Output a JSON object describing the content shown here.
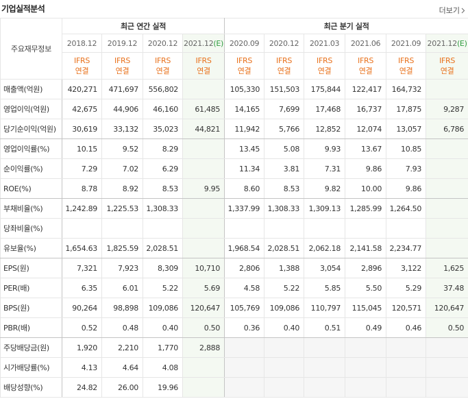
{
  "header": {
    "title": "기업실적분석",
    "more": "더보기"
  },
  "table": {
    "corner": "주요재무정보",
    "groups": [
      "최근 연간 실적",
      "최근 분기 실적"
    ],
    "periods": [
      {
        "date": "2018.12"
      },
      {
        "date": "2019.12"
      },
      {
        "date": "2020.12"
      },
      {
        "date": "2021.12",
        "mark": "(E)"
      },
      {
        "date": "2020.09"
      },
      {
        "date": "2020.12"
      },
      {
        "date": "2021.03"
      },
      {
        "date": "2021.06"
      },
      {
        "date": "2021.09"
      },
      {
        "date": "2021.12",
        "mark": "(E)"
      }
    ],
    "basis": [
      {
        "standard": "IFRS",
        "scope": "연결"
      },
      {
        "standard": "IFRS",
        "scope": "연결"
      },
      {
        "standard": "IFRS",
        "scope": "연결"
      },
      {
        "standard": "IFRS",
        "scope": "연결"
      },
      {
        "standard": "IFRS",
        "scope": "연결"
      },
      {
        "standard": "IFRS",
        "scope": "연결"
      },
      {
        "standard": "IFRS",
        "scope": "연결"
      },
      {
        "standard": "IFRS",
        "scope": "연결"
      },
      {
        "standard": "IFRS",
        "scope": "연결"
      },
      {
        "standard": "IFRS",
        "scope": "연결"
      }
    ],
    "rows": [
      {
        "label": "매출액(억원)",
        "values": [
          "420,271",
          "471,697",
          "556,802",
          null,
          "105,330",
          "151,503",
          "175,844",
          "122,417",
          "164,732",
          null
        ]
      },
      {
        "label": "영업이익(억원)",
        "values": [
          "42,675",
          "44,906",
          "46,160",
          "61,485",
          "14,165",
          "7,699",
          "17,468",
          "16,737",
          "17,875",
          "9,287"
        ]
      },
      {
        "label": "당기순이익(억원)",
        "values": [
          "30,619",
          "33,132",
          "35,023",
          "44,821",
          "11,942",
          "5,766",
          "12,852",
          "12,074",
          "13,057",
          "6,786"
        ]
      },
      {
        "label": "영업이익률(%)",
        "values": [
          "10.15",
          "9.52",
          "8.29",
          null,
          "13.45",
          "5.08",
          "9.93",
          "13.67",
          "10.85",
          null
        ]
      },
      {
        "label": "순이익률(%)",
        "values": [
          "7.29",
          "7.02",
          "6.29",
          null,
          "11.34",
          "3.81",
          "7.31",
          "9.86",
          "7.93",
          null
        ]
      },
      {
        "label": "ROE(%)",
        "values": [
          "8.78",
          "8.92",
          "8.53",
          "9.95",
          "8.60",
          "8.53",
          "9.82",
          "10.00",
          "9.86",
          null
        ]
      },
      {
        "label": "부채비율(%)",
        "values": [
          "1,242.89",
          "1,225.53",
          "1,308.33",
          null,
          "1,337.99",
          "1,308.33",
          "1,309.13",
          "1,285.99",
          "1,264.50",
          null
        ]
      },
      {
        "label": "당좌비율(%)",
        "values": [
          null,
          null,
          null,
          null,
          null,
          null,
          null,
          null,
          null,
          null
        ]
      },
      {
        "label": "유보율(%)",
        "values": [
          "1,654.63",
          "1,825.59",
          "2,028.51",
          null,
          "1,968.54",
          "2,028.51",
          "2,062.18",
          "2,141.58",
          "2,234.77",
          null
        ]
      },
      {
        "label": "EPS(원)",
        "values": [
          "7,321",
          "7,923",
          "8,309",
          "10,710",
          "2,806",
          "1,388",
          "3,054",
          "2,896",
          "3,122",
          "1,625"
        ]
      },
      {
        "label": "PER(배)",
        "values": [
          "6.35",
          "6.01",
          "5.22",
          "5.69",
          "4.58",
          "5.22",
          "5.85",
          "5.50",
          "5.29",
          "37.48"
        ]
      },
      {
        "label": "BPS(원)",
        "values": [
          "90,264",
          "98,898",
          "109,086",
          "120,647",
          "105,769",
          "109,086",
          "110,797",
          "115,045",
          "120,571",
          "120,647"
        ]
      },
      {
        "label": "PBR(배)",
        "values": [
          "0.52",
          "0.48",
          "0.40",
          "0.50",
          "0.36",
          "0.40",
          "0.51",
          "0.49",
          "0.46",
          "0.50"
        ]
      },
      {
        "label": "주당배당금(원)",
        "values": [
          "1,920",
          "2,210",
          "1,770",
          "2,888",
          null,
          null,
          null,
          null,
          null,
          null
        ]
      },
      {
        "label": "시가배당률(%)",
        "values": [
          "4.13",
          "4.64",
          "4.08",
          null,
          null,
          null,
          null,
          null,
          null,
          null
        ]
      },
      {
        "label": "배당성향(%)",
        "values": [
          "24.82",
          "26.00",
          "19.96",
          null,
          null,
          null,
          null,
          null,
          null,
          null
        ]
      }
    ]
  }
}
